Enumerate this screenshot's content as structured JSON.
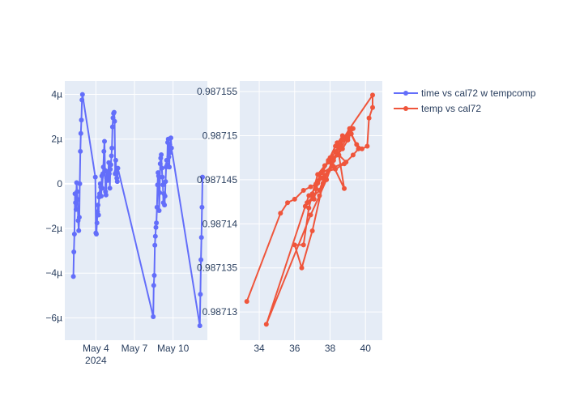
{
  "colors": {
    "plot_bg": "#E5ECF6",
    "grid": "#ffffff",
    "series_time": "#636EFA",
    "series_temp": "#EF553B",
    "text": "#2a3f5f"
  },
  "chart_data": [
    {
      "type": "scatter",
      "mode": "lines+markers",
      "name": "time vs cal72 w tempcomp",
      "x_axis": {
        "type": "date",
        "range": [
          "2024-05-01T14:00",
          "2024-05-12T16:00"
        ],
        "ticks": [
          {
            "value": "2024-05-04",
            "label": "May 4",
            "sublabel": "2024"
          },
          {
            "value": "2024-05-07",
            "label": "May 7",
            "sublabel": ""
          },
          {
            "value": "2024-05-10",
            "label": "May 10",
            "sublabel": ""
          }
        ]
      },
      "y_axis": {
        "range": [
          -7e-06,
          4.6e-06
        ],
        "ticks": [
          {
            "value": 4e-06,
            "label": "4µ"
          },
          {
            "value": 2e-06,
            "label": "2µ"
          },
          {
            "value": 0,
            "label": "0"
          },
          {
            "value": -2e-06,
            "label": "−2µ"
          },
          {
            "value": -4e-06,
            "label": "−4µ"
          },
          {
            "value": -6e-06,
            "label": "−6µ"
          }
        ]
      },
      "points": [
        [
          "2024-05-02T06:00",
          -4.15e-06
        ],
        [
          "2024-05-02T07:00",
          -3.05e-06
        ],
        [
          "2024-05-02T08:00",
          -2.25e-06
        ],
        [
          "2024-05-02T09:00",
          -4.5e-07
        ],
        [
          "2024-05-02T10:00",
          -8.5e-07
        ],
        [
          "2024-05-02T11:00",
          -1.15e-06
        ],
        [
          "2024-05-02T12:00",
          5e-08
        ],
        [
          "2024-05-02T13:00",
          -3.5e-07
        ],
        [
          "2024-05-02T14:00",
          -7e-07
        ],
        [
          "2024-05-02T15:00",
          -1.65e-06
        ],
        [
          "2024-05-02T16:00",
          -2.1e-06
        ],
        [
          "2024-05-02T17:00",
          -1.5e-06
        ],
        [
          "2024-05-02T18:00",
          0.0
        ],
        [
          "2024-05-02T19:00",
          1.45e-06
        ],
        [
          "2024-05-02T20:00",
          2.25e-06
        ],
        [
          "2024-05-02T21:00",
          2.85e-06
        ],
        [
          "2024-05-02T22:00",
          3.75e-06
        ],
        [
          "2024-05-02T23:00",
          4e-06
        ],
        [
          "2024-05-03T23:00",
          3e-07
        ],
        [
          "2024-05-04T00:00",
          -2.2e-06
        ],
        [
          "2024-05-04T01:00",
          -2.25e-06
        ],
        [
          "2024-05-04T02:00",
          -1.75e-06
        ],
        [
          "2024-05-04T03:00",
          -1.25e-06
        ],
        [
          "2024-05-04T04:00",
          -9.5e-07
        ],
        [
          "2024-05-04T05:00",
          -1.4e-06
        ],
        [
          "2024-05-04T06:00",
          -6e-07
        ],
        [
          "2024-05-04T07:00",
          -4.5e-07
        ],
        [
          "2024-05-04T08:00",
          0.0
        ],
        [
          "2024-05-04T09:00",
          -1.5e-07
        ],
        [
          "2024-05-04T10:00",
          -5.5e-07
        ],
        [
          "2024-05-04T11:00",
          3.5e-07
        ],
        [
          "2024-05-04T12:00",
          -2e-07
        ],
        [
          "2024-05-04T13:00",
          4.5e-07
        ],
        [
          "2024-05-04T14:00",
          7.5e-07
        ],
        [
          "2024-05-04T15:00",
          1.45e-06
        ],
        [
          "2024-05-04T16:00",
          1.9e-06
        ],
        [
          "2024-05-04T17:00",
          6e-07
        ],
        [
          "2024-05-04T18:00",
          -3.5e-07
        ],
        [
          "2024-05-04T19:00",
          -5e-07
        ],
        [
          "2024-05-04T20:00",
          2.5e-07
        ],
        [
          "2024-05-04T21:00",
          5.5e-07
        ],
        [
          "2024-05-04T22:00",
          1.5e-07
        ],
        [
          "2024-05-04T23:00",
          4e-07
        ],
        [
          "2024-05-05T00:00",
          9.5e-07
        ],
        [
          "2024-05-05T01:00",
          4.5e-07
        ],
        [
          "2024-05-05T02:00",
          -2e-07
        ],
        [
          "2024-05-05T03:00",
          6.5e-07
        ],
        [
          "2024-05-05T04:00",
          8.5e-07
        ],
        [
          "2024-05-05T05:00",
          1.25e-06
        ],
        [
          "2024-05-05T06:00",
          1.6e-06
        ],
        [
          "2024-05-05T07:00",
          2.55e-06
        ],
        [
          "2024-05-05T08:00",
          2.95e-06
        ],
        [
          "2024-05-05T09:00",
          3.15e-06
        ],
        [
          "2024-05-05T10:00",
          3.2e-06
        ],
        [
          "2024-05-05T11:00",
          2.8e-06
        ],
        [
          "2024-05-05T12:00",
          4.5e-07
        ],
        [
          "2024-05-05T13:00",
          1.05e-06
        ],
        [
          "2024-05-05T14:00",
          5.5e-07
        ],
        [
          "2024-05-05T15:00",
          2.5e-07
        ],
        [
          "2024-05-05T16:00",
          1e-07
        ],
        [
          "2024-05-05T17:00",
          7e-07
        ],
        [
          "2024-05-08T11:00",
          -5.95e-06
        ],
        [
          "2024-05-08T12:00",
          -4.55e-06
        ],
        [
          "2024-05-08T13:00",
          -4.1e-06
        ],
        [
          "2024-05-08T14:00",
          -2.75e-06
        ],
        [
          "2024-05-08T15:00",
          -2.35e-06
        ],
        [
          "2024-05-08T16:00",
          -1.95e-06
        ],
        [
          "2024-05-08T17:00",
          -1.75e-06
        ],
        [
          "2024-05-08T18:00",
          -1.05e-06
        ],
        [
          "2024-05-08T19:00",
          -5e-08
        ],
        [
          "2024-05-08T20:00",
          5e-07
        ],
        [
          "2024-05-08T21:00",
          3.5e-07
        ],
        [
          "2024-05-08T22:00",
          -1.2e-06
        ],
        [
          "2024-05-08T23:00",
          -4e-07
        ],
        [
          "2024-05-09T00:00",
          9e-07
        ],
        [
          "2024-05-09T01:00",
          1.15e-06
        ],
        [
          "2024-05-09T02:00",
          1.3e-06
        ],
        [
          "2024-05-09T03:00",
          7e-07
        ],
        [
          "2024-05-09T04:00",
          3e-07
        ],
        [
          "2024-05-09T05:00",
          -5e-08
        ],
        [
          "2024-05-09T06:00",
          -8.5e-07
        ],
        [
          "2024-05-09T07:00",
          -4.5e-07
        ],
        [
          "2024-05-09T08:00",
          -9.5e-07
        ],
        [
          "2024-05-09T09:00",
          -5.5e-07
        ],
        [
          "2024-05-09T10:00",
          1e-07
        ],
        [
          "2024-05-09T11:00",
          7.5e-07
        ],
        [
          "2024-05-09T12:00",
          1.05e-06
        ],
        [
          "2024-05-09T13:00",
          8.5e-07
        ],
        [
          "2024-05-09T14:00",
          1.85e-06
        ],
        [
          "2024-05-09T15:00",
          2e-06
        ],
        [
          "2024-05-09T16:00",
          1.2e-06
        ],
        [
          "2024-05-09T17:00",
          7.5e-07
        ],
        [
          "2024-05-09T18:00",
          1.75e-06
        ],
        [
          "2024-05-09T19:00",
          1.4e-06
        ],
        [
          "2024-05-09T20:00",
          2.05e-06
        ],
        [
          "2024-05-09T21:00",
          1.6e-06
        ],
        [
          "2024-05-12T02:00",
          -6.35e-06
        ],
        [
          "2024-05-12T03:00",
          -4.95e-06
        ],
        [
          "2024-05-12T04:00",
          -3.4e-06
        ],
        [
          "2024-05-12T05:00",
          -2.4e-06
        ],
        [
          "2024-05-12T06:00",
          -1.05e-06
        ],
        [
          "2024-05-12T07:00",
          3e-07
        ]
      ]
    },
    {
      "type": "scatter",
      "mode": "lines+markers",
      "name": "temp vs cal72",
      "x_axis": {
        "range": [
          32.9,
          40.95
        ],
        "ticks": [
          {
            "value": 34,
            "label": "34"
          },
          {
            "value": 36,
            "label": "36"
          },
          {
            "value": 38,
            "label": "38"
          },
          {
            "value": 40,
            "label": "40"
          }
        ]
      },
      "y_axis": {
        "range": [
          0.9871268,
          0.9871562
        ],
        "ticks": [
          {
            "value": 0.98713,
            "label": "0.98713"
          },
          {
            "value": 0.987135,
            "label": "0.987135"
          },
          {
            "value": 0.98714,
            "label": "0.98714"
          },
          {
            "value": 0.987145,
            "label": "0.987145"
          },
          {
            "value": 0.98715,
            "label": "0.98715"
          },
          {
            "value": 0.987155,
            "label": "0.987155"
          }
        ]
      },
      "points": [
        [
          33.3,
          0.9871312
        ],
        [
          35.2,
          0.9871412
        ],
        [
          35.6,
          0.9871424
        ],
        [
          36.0,
          0.9871428
        ],
        [
          36.5,
          0.9871438
        ],
        [
          36.9,
          0.9871442
        ],
        [
          37.3,
          0.9871446
        ],
        [
          37.1,
          0.9871428
        ],
        [
          36.7,
          0.9871424
        ],
        [
          37.4,
          0.9871438
        ],
        [
          37.7,
          0.9871455
        ],
        [
          38.1,
          0.9871468
        ],
        [
          38.4,
          0.9871478
        ],
        [
          38.7,
          0.9871485
        ],
        [
          39.0,
          0.9871495
        ],
        [
          39.3,
          0.9871508
        ],
        [
          38.9,
          0.9871498
        ],
        [
          38.5,
          0.9871488
        ],
        [
          38.1,
          0.9871476
        ],
        [
          37.7,
          0.9871466
        ],
        [
          37.3,
          0.9871456
        ],
        [
          37.0,
          0.9871434
        ],
        [
          36.8,
          0.9871418
        ],
        [
          36.5,
          0.9871376
        ],
        [
          36.0,
          0.9871376
        ],
        [
          36.4,
          0.987135
        ],
        [
          37.0,
          0.9871392
        ],
        [
          37.6,
          0.9871446
        ],
        [
          38.1,
          0.987147
        ],
        [
          38.6,
          0.987149
        ],
        [
          39.1,
          0.9871505
        ],
        [
          39.6,
          0.9871485
        ],
        [
          39.3,
          0.9871478
        ],
        [
          38.8,
          0.9871468
        ],
        [
          38.3,
          0.9871462
        ],
        [
          37.9,
          0.987146
        ],
        [
          37.5,
          0.9871452
        ],
        [
          37.2,
          0.987144
        ],
        [
          36.8,
          0.9871432
        ],
        [
          36.6,
          0.987142
        ],
        [
          34.4,
          0.9871286
        ],
        [
          36.9,
          0.987141
        ],
        [
          37.4,
          0.9871432
        ],
        [
          37.8,
          0.987145
        ],
        [
          38.2,
          0.9871472
        ],
        [
          38.6,
          0.9871485
        ],
        [
          38.9,
          0.9871496
        ],
        [
          39.2,
          0.9871502
        ],
        [
          39.5,
          0.987149
        ],
        [
          39.8,
          0.9871485
        ],
        [
          40.1,
          0.9871488
        ],
        [
          40.2,
          0.987152
        ],
        [
          40.4,
          0.9871532
        ],
        [
          40.4,
          0.9871546
        ],
        [
          39.1,
          0.9871508
        ],
        [
          38.7,
          0.9871495
        ],
        [
          38.3,
          0.9871482
        ],
        [
          37.9,
          0.987147
        ],
        [
          37.6,
          0.987146
        ],
        [
          37.3,
          0.9871448
        ],
        [
          37.9,
          0.9871472
        ],
        [
          38.3,
          0.9871488
        ],
        [
          38.7,
          0.98715
        ],
        [
          39.0,
          0.9871498
        ],
        [
          38.4,
          0.9871492
        ],
        [
          38.0,
          0.9871475
        ],
        [
          38.2,
          0.9871465
        ],
        [
          38.8,
          0.987144
        ],
        [
          38.5,
          0.9871478
        ],
        [
          38.9,
          0.987147
        ],
        [
          37.5,
          0.9871458
        ],
        [
          37.2,
          0.9871445
        ]
      ]
    }
  ],
  "legend": {
    "placement": "top-right",
    "items": [
      {
        "label": "time vs cal72 w tempcomp",
        "color_key": "series_time"
      },
      {
        "label": "temp vs cal72",
        "color_key": "series_temp"
      }
    ]
  }
}
